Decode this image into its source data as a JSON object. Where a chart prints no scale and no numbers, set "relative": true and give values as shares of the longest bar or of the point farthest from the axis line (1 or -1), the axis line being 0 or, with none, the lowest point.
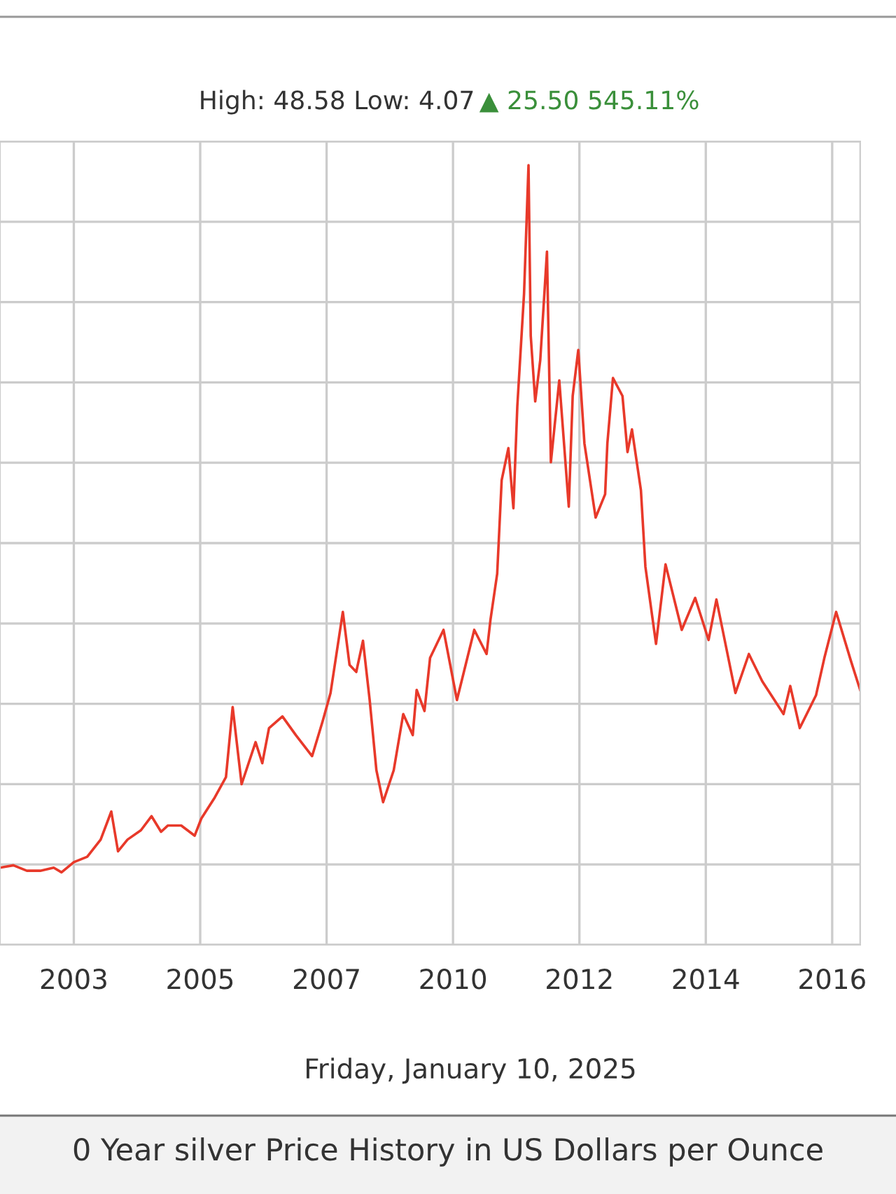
{
  "chart_data": {
    "type": "line",
    "relative": true,
    "subtitle": "High: 48.58 Low: 4.07",
    "xlabel": "Friday, January 10, 2025",
    "annotations": [
      "▲ 25.50 545.11%",
      "0 Year silver Price History in US Dollars per Ounce"
    ],
    "xlim": [
      2001.51,
      2016.89
    ],
    "xticks": [
      {
        "value": 2002.83,
        "label": "2003"
      },
      {
        "value": 2005.09,
        "label": "2005"
      },
      {
        "value": 2007.35,
        "label": "2007"
      },
      {
        "value": 2009.61,
        "label": "2010"
      },
      {
        "value": 2011.87,
        "label": "2012"
      },
      {
        "value": 2014.13,
        "label": "2014"
      },
      {
        "value": 2016.39,
        "label": "2016"
      }
    ],
    "grid": true,
    "legend": false,
    "series": [
      {
        "color": "#e8392a",
        "x": [
          2001.51,
          2001.75,
          2001.99,
          2002.23,
          2002.47,
          2002.61,
          2002.83,
          2003.07,
          2003.31,
          2003.5,
          2003.62,
          2003.79,
          2004.03,
          2004.22,
          2004.39,
          2004.51,
          2004.75,
          2004.99,
          2005.11,
          2005.35,
          2005.55,
          2005.67,
          2005.83,
          2006.08,
          2006.2,
          2006.32,
          2006.56,
          2006.8,
          2007.09,
          2007.28,
          2007.42,
          2007.64,
          2007.76,
          2007.88,
          2008.0,
          2008.12,
          2008.24,
          2008.36,
          2008.55,
          2008.72,
          2008.89,
          2008.96,
          2009.1,
          2009.2,
          2009.32,
          2009.44,
          2009.68,
          2009.99,
          2010.21,
          2010.28,
          2010.4,
          2010.48,
          2010.6,
          2010.69,
          2010.76,
          2010.88,
          2010.96,
          2011.0,
          2011.08,
          2011.17,
          2011.29,
          2011.36,
          2011.51,
          2011.68,
          2011.75,
          2011.85,
          2011.96,
          2012.16,
          2012.33,
          2012.37,
          2012.47,
          2012.64,
          2012.73,
          2012.81,
          2012.97,
          2013.05,
          2013.24,
          2013.41,
          2013.7,
          2013.94,
          2014.18,
          2014.32,
          2014.66,
          2014.9,
          2015.14,
          2015.52,
          2015.64,
          2015.81,
          2016.1,
          2016.25,
          2016.46,
          2016.73,
          2016.89
        ],
        "values": [
          0.099,
          0.102,
          0.095,
          0.095,
          0.099,
          0.093,
          0.106,
          0.113,
          0.135,
          0.171,
          0.12,
          0.135,
          0.147,
          0.165,
          0.145,
          0.153,
          0.153,
          0.14,
          0.162,
          0.189,
          0.215,
          0.305,
          0.206,
          0.26,
          0.233,
          0.278,
          0.293,
          0.269,
          0.242,
          0.287,
          0.323,
          0.427,
          0.359,
          0.35,
          0.39,
          0.314,
          0.224,
          0.183,
          0.224,
          0.296,
          0.269,
          0.327,
          0.3,
          0.368,
          0.386,
          0.404,
          0.314,
          0.404,
          0.373,
          0.417,
          0.476,
          0.596,
          0.637,
          0.56,
          0.691,
          0.835,
          1.0,
          0.781,
          0.697,
          0.75,
          0.889,
          0.619,
          0.724,
          0.562,
          0.704,
          0.763,
          0.643,
          0.548,
          0.578,
          0.643,
          0.727,
          0.704,
          0.632,
          0.661,
          0.583,
          0.485,
          0.386,
          0.488,
          0.404,
          0.445,
          0.391,
          0.443,
          0.323,
          0.373,
          0.338,
          0.296,
          0.332,
          0.278,
          0.32,
          0.368,
          0.427,
          0.363,
          0.327
        ]
      }
    ]
  }
}
